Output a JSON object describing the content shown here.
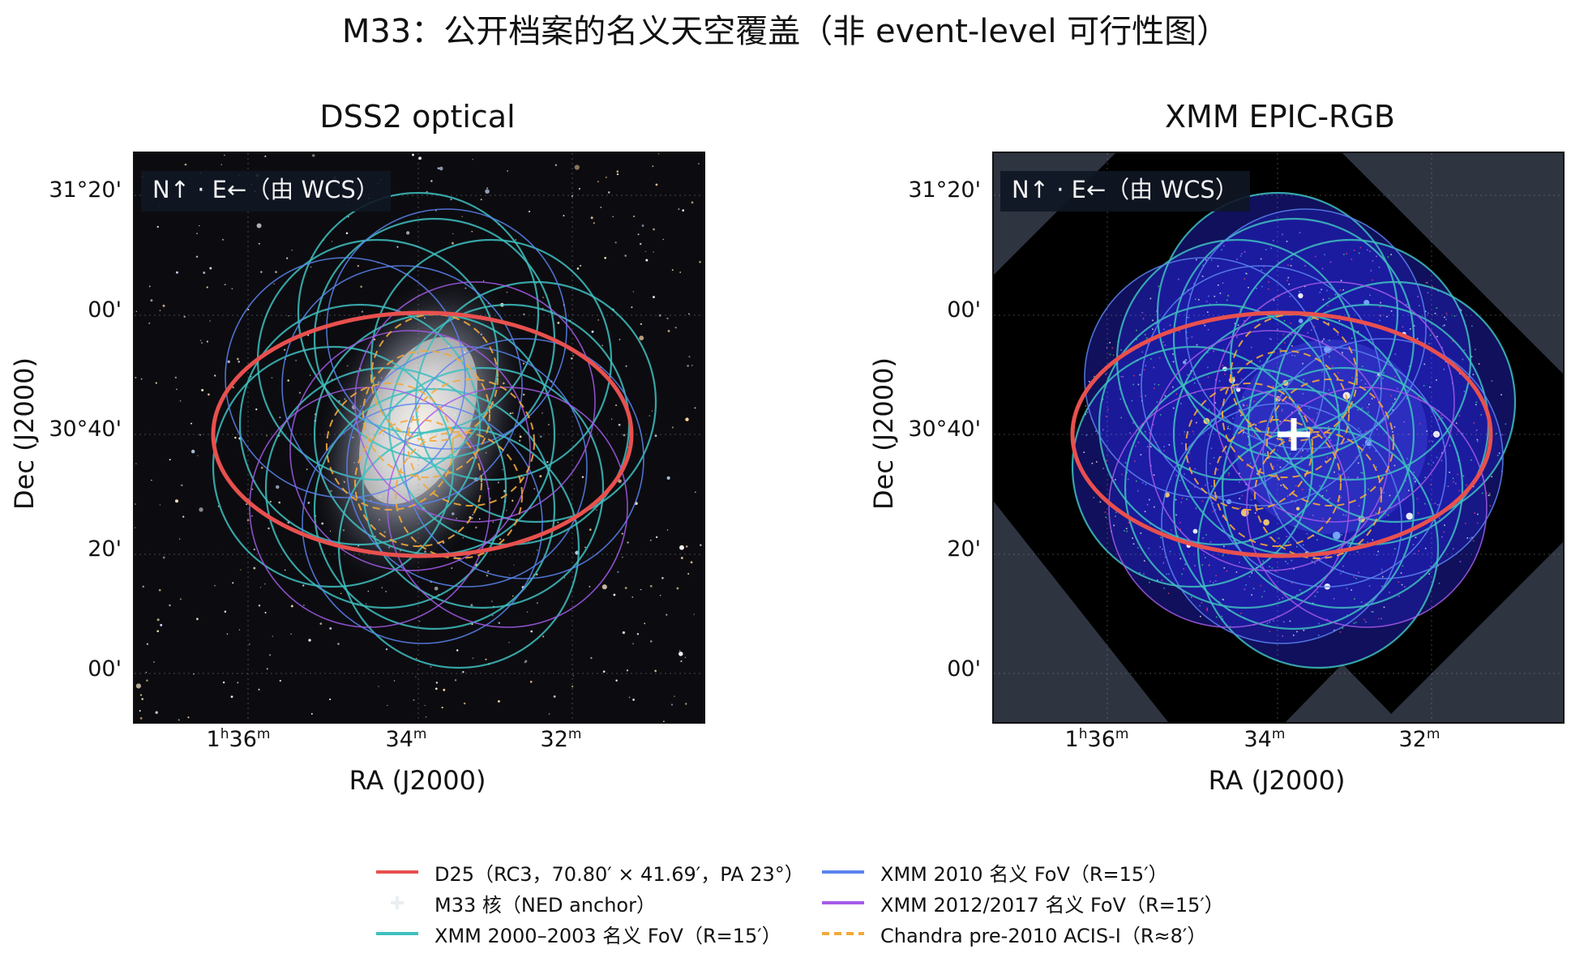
{
  "title": "M33：公开档案的名义天空覆盖（非 event-level 可行性图）",
  "panels": [
    {
      "title": "DSS2 optical",
      "orientation_label": "N↑ · E←（由 WCS）"
    },
    {
      "title": "XMM EPIC-RGB",
      "orientation_label": "N↑ · E←（由 WCS）"
    }
  ],
  "axes": {
    "xlabel": "RA (J2000)",
    "ylabel": "Dec (J2000)",
    "yticks": [
      "31°20'",
      "00'",
      "30°40'",
      "20'",
      "00'"
    ],
    "xticks": [
      {
        "major": "1",
        "sup1": "h",
        "minor": "36",
        "sup2": "m"
      },
      {
        "major": "",
        "sup1": "",
        "minor": "34",
        "sup2": "m"
      },
      {
        "major": "",
        "sup1": "",
        "minor": "32",
        "sup2": "m"
      }
    ]
  },
  "legend": [
    {
      "label": "D25（RC3，70.80′ × 41.69′，PA 23°）",
      "style": "solid",
      "color": "#e8504e"
    },
    {
      "label": "M33 核（NED anchor）",
      "style": "plus",
      "color": "#e9eef2"
    },
    {
      "label": "XMM 2000–2003 名义 FoV（R=15′）",
      "style": "solid",
      "color": "#3fbfbf"
    },
    {
      "label": "XMM 2010 名义 FoV（R=15′）",
      "style": "solid",
      "color": "#5b84ee"
    },
    {
      "label": "XMM 2012/2017 名义 FoV（R=15′）",
      "style": "solid",
      "color": "#a45be8"
    },
    {
      "label": "Chandra pre-2010 ACIS-I（R≈8′）",
      "style": "dashed",
      "color": "#f2a93b"
    }
  ],
  "colors": {
    "d25": "#e8504e",
    "xmm_2000_2003": "#3fbfbf",
    "xmm_2010": "#5b84ee",
    "xmm_2012_2017": "#a45be8",
    "chandra": "#f2a93b",
    "nucleus": "#ffffff",
    "panel_bg_optical": "#0c0c10",
    "panel_bg_xmm": "#000000",
    "panel_blank": "#2e3440"
  },
  "icons": [
    "plus-marker-icon",
    "north-arrow-icon",
    "east-arrow-icon"
  ]
}
